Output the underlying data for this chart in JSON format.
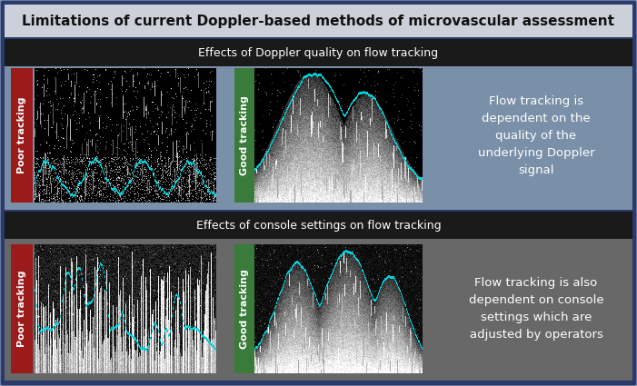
{
  "title": "Limitations of current Doppler-based methods of microvascular assessment",
  "section1_header": "Effects of Doppler quality on flow tracking",
  "section2_header": "Effects of console settings on flow tracking",
  "poor_tracking_bg": "#9b1a1a",
  "good_tracking_bg": "#3a7a3a",
  "text1": "Flow tracking is\ndependent on the\nquality of the\nunderlying Doppler\nsignal",
  "text2": "Flow tracking is also\ndependent on console\nsettings which are\nadjusted by operators",
  "outer_border_color": "#2a3a6a",
  "outer_fill": "#2e4a7a",
  "title_bg": "#d0d4dc",
  "sec1_bg": "#7a8faa",
  "sec2_bg": "#6a6a6a",
  "header_bar_bg": "#1a1a1a",
  "text_color": "#ffffff"
}
